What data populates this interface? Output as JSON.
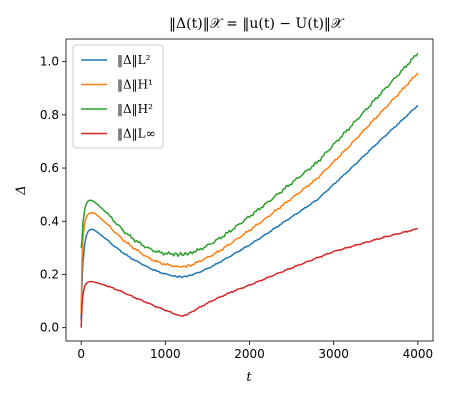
{
  "chart_data": {
    "type": "line",
    "title": "‖Δ(t)‖𝒳 = ‖u(t) − U(t)‖𝒳",
    "xlabel": "t",
    "ylabel": "Δ",
    "xlim": [
      -180,
      4180
    ],
    "ylim": [
      -0.05,
      1.085
    ],
    "xticks": [
      0,
      1000,
      2000,
      3000,
      4000
    ],
    "yticks": [
      0.0,
      0.2,
      0.4,
      0.6,
      0.8,
      1.0
    ],
    "xtick_labels": [
      "0",
      "1000",
      "2000",
      "3000",
      "4000"
    ],
    "ytick_labels": [
      "0.0",
      "0.2",
      "0.4",
      "0.6",
      "0.8",
      "1.0"
    ],
    "grid": false,
    "legend_position": "top-left",
    "series": [
      {
        "name": "‖Δ‖L²",
        "color": "#1f77b4",
        "x": [
          0,
          10,
          20,
          40,
          60,
          80,
          100,
          130,
          160,
          200,
          300,
          400,
          500,
          600,
          700,
          800,
          900,
          1000,
          1100,
          1150,
          1200,
          1250,
          1300,
          1400,
          1500,
          1600,
          1700,
          1800,
          2000,
          2200,
          2400,
          2600,
          2800,
          3000,
          3200,
          3400,
          3600,
          3800,
          4000
        ],
        "values": [
          0.03,
          0.16,
          0.24,
          0.31,
          0.345,
          0.36,
          0.368,
          0.37,
          0.366,
          0.357,
          0.332,
          0.305,
          0.281,
          0.26,
          0.243,
          0.226,
          0.212,
          0.202,
          0.194,
          0.192,
          0.191,
          0.193,
          0.197,
          0.208,
          0.222,
          0.238,
          0.256,
          0.274,
          0.311,
          0.352,
          0.395,
          0.437,
          0.48,
          0.538,
          0.597,
          0.658,
          0.718,
          0.776,
          0.836
        ]
      },
      {
        "name": "‖Δ‖H¹",
        "color": "#ff7f0e",
        "x": [
          0,
          10,
          20,
          40,
          60,
          80,
          100,
          130,
          160,
          200,
          300,
          400,
          500,
          600,
          700,
          800,
          900,
          1000,
          1100,
          1150,
          1200,
          1250,
          1300,
          1400,
          1500,
          1600,
          1700,
          1800,
          2000,
          2200,
          2400,
          2600,
          2800,
          3000,
          3200,
          3400,
          3600,
          3800,
          4000
        ],
        "values": [
          0.05,
          0.26,
          0.33,
          0.39,
          0.415,
          0.425,
          0.43,
          0.432,
          0.43,
          0.42,
          0.392,
          0.36,
          0.33,
          0.305,
          0.283,
          0.262,
          0.248,
          0.238,
          0.232,
          0.23,
          0.229,
          0.231,
          0.235,
          0.248,
          0.264,
          0.28,
          0.3,
          0.322,
          0.366,
          0.412,
          0.462,
          0.51,
          0.56,
          0.623,
          0.687,
          0.755,
          0.822,
          0.889,
          0.958
        ]
      },
      {
        "name": "‖Δ‖H²",
        "color": "#2ca02c",
        "x": [
          0,
          10,
          20,
          40,
          60,
          80,
          100,
          130,
          160,
          200,
          300,
          400,
          500,
          600,
          700,
          800,
          900,
          1000,
          1100,
          1150,
          1200,
          1250,
          1300,
          1400,
          1500,
          1600,
          1700,
          1800,
          2000,
          2200,
          2400,
          2600,
          2800,
          3000,
          3200,
          3400,
          3600,
          3800,
          4000
        ],
        "values": [
          0.3,
          0.33,
          0.39,
          0.44,
          0.465,
          0.475,
          0.479,
          0.478,
          0.472,
          0.462,
          0.432,
          0.398,
          0.365,
          0.338,
          0.316,
          0.298,
          0.285,
          0.279,
          0.276,
          0.275,
          0.276,
          0.277,
          0.282,
          0.292,
          0.308,
          0.327,
          0.347,
          0.37,
          0.418,
          0.467,
          0.518,
          0.569,
          0.62,
          0.688,
          0.755,
          0.825,
          0.894,
          0.962,
          1.032
        ]
      },
      {
        "name": "‖Δ‖L∞",
        "color": "#d62728",
        "x": [
          0,
          10,
          20,
          40,
          60,
          80,
          100,
          130,
          160,
          200,
          300,
          400,
          500,
          600,
          700,
          800,
          900,
          1000,
          1100,
          1150,
          1200,
          1250,
          1300,
          1400,
          1500,
          1600,
          1700,
          1800,
          2000,
          2200,
          2400,
          2600,
          2800,
          3000,
          3200,
          3400,
          3600,
          3800,
          4000
        ],
        "values": [
          0.0,
          0.08,
          0.12,
          0.155,
          0.166,
          0.171,
          0.173,
          0.173,
          0.171,
          0.168,
          0.158,
          0.146,
          0.133,
          0.118,
          0.105,
          0.092,
          0.078,
          0.066,
          0.053,
          0.047,
          0.044,
          0.048,
          0.057,
          0.075,
          0.092,
          0.108,
          0.122,
          0.136,
          0.16,
          0.186,
          0.212,
          0.237,
          0.262,
          0.286,
          0.304,
          0.322,
          0.34,
          0.356,
          0.372
        ]
      }
    ]
  }
}
